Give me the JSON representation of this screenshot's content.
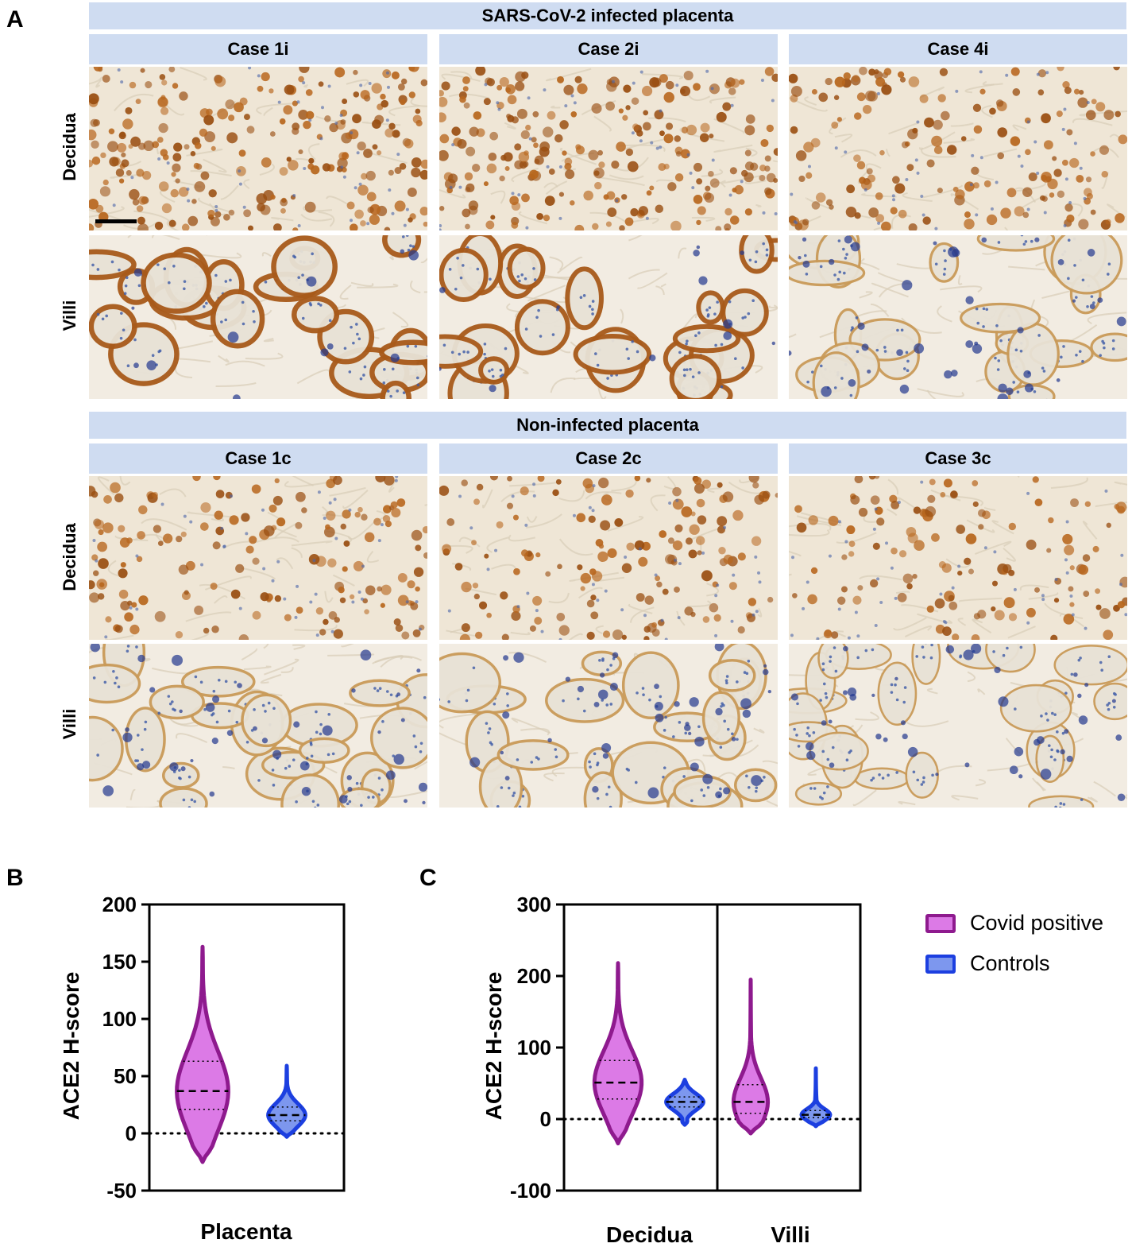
{
  "panelA": {
    "letter": "A",
    "groups": [
      {
        "title": "SARS-CoV-2 infected placenta",
        "cases": [
          "Case 1i",
          "Case 2i",
          "Case 4i"
        ],
        "rows": [
          "Decidua",
          "Villi"
        ]
      },
      {
        "title": "Non-infected placenta",
        "cases": [
          "Case 1c",
          "Case 2c",
          "Case 3c"
        ],
        "rows": [
          "Decidua",
          "Villi"
        ]
      }
    ]
  },
  "panelB": {
    "letter": "B",
    "ylabel": "ACE2 H-score",
    "xlabel": "Placenta"
  },
  "panelC": {
    "letter": "C",
    "ylabel": "ACE2 H-score",
    "categories": [
      "Decidua",
      "Villi"
    ]
  },
  "legend": {
    "items": [
      {
        "label": "Covid positive",
        "fill": "#dc7ae6",
        "stroke": "#8e1a8e"
      },
      {
        "label": "Controls",
        "fill": "#7d97ee",
        "stroke": "#1c3fe0"
      }
    ]
  },
  "colors": {
    "band": "#cfdcf1",
    "covid_fill": "#dc7ae6",
    "covid_stroke": "#8e1a8e",
    "control_fill": "#7d97ee",
    "control_stroke": "#1c3fe0",
    "stain_brown": "#9a4f12",
    "stain_blue": "#2b4aa0"
  },
  "chart_data": [
    {
      "type": "violin",
      "ylim": [
        -50,
        200
      ],
      "yticks": [
        -50,
        0,
        50,
        100,
        150,
        200
      ],
      "ylabel": "ACE2 H-score",
      "xlabel": "Placenta",
      "reference_line": 0,
      "series": [
        {
          "name": "Covid positive",
          "category": "Placenta",
          "min": -25,
          "max": 163,
          "median": 37,
          "q1": 21,
          "q3": 63
        },
        {
          "name": "Controls",
          "category": "Placenta",
          "min": -3,
          "max": 59,
          "median": 16,
          "q1": 11,
          "q3": 23
        }
      ]
    },
    {
      "type": "violin",
      "ylim": [
        -100,
        300
      ],
      "yticks": [
        -100,
        0,
        100,
        200,
        300
      ],
      "ylabel": "ACE2 H-score",
      "categories": [
        "Decidua",
        "Villi"
      ],
      "reference_line": 0,
      "series": [
        {
          "name": "Covid positive",
          "category": "Decidua",
          "min": -34,
          "max": 218,
          "median": 51,
          "q1": 28,
          "q3": 82
        },
        {
          "name": "Controls",
          "category": "Decidua",
          "min": -8,
          "max": 55,
          "median": 24,
          "q1": 17,
          "q3": 31
        },
        {
          "name": "Covid positive",
          "category": "Villi",
          "min": -20,
          "max": 195,
          "median": 24,
          "q1": 8,
          "q3": 48
        },
        {
          "name": "Controls",
          "category": "Villi",
          "min": -10,
          "max": 71,
          "median": 6,
          "q1": 2,
          "q3": 12
        }
      ]
    }
  ]
}
